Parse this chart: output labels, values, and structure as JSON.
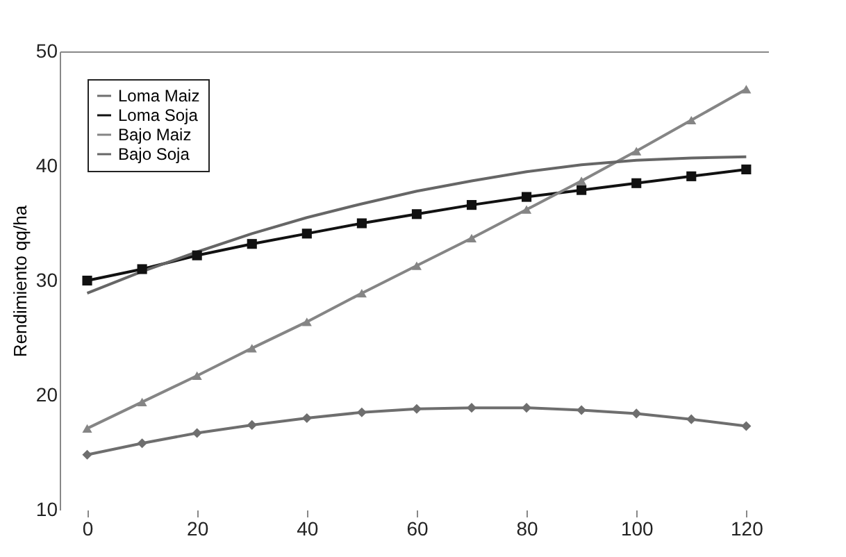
{
  "chart_data": {
    "type": "line",
    "ylabel": "Rendimiento qq/ha",
    "x": [
      0,
      10,
      20,
      30,
      40,
      50,
      60,
      70,
      80,
      90,
      100,
      110,
      120
    ],
    "xlim": [
      -5,
      124
    ],
    "xticks": [
      0,
      20,
      40,
      60,
      80,
      100,
      120
    ],
    "ylim": [
      10,
      50
    ],
    "yticks": [
      10,
      20,
      30,
      40,
      50
    ],
    "grid": false,
    "legend": "top left",
    "line_style": "solid",
    "series": [
      {
        "name": "Loma Maiz",
        "color": "#6e6e6e",
        "marker": "diamond",
        "values": [
          14.8,
          15.8,
          16.7,
          17.4,
          18.0,
          18.5,
          18.8,
          18.9,
          18.9,
          18.7,
          18.4,
          17.9,
          17.3
        ]
      },
      {
        "name": "Loma Soja",
        "color": "#111111",
        "marker": "square",
        "values": [
          30.0,
          31.0,
          32.2,
          33.2,
          34.1,
          35.0,
          35.8,
          36.6,
          37.3,
          37.9,
          38.5,
          39.1,
          39.7
        ]
      },
      {
        "name": "Bajo Maiz",
        "color": "#858585",
        "marker": "triangle",
        "values": [
          17.1,
          19.4,
          21.7,
          24.1,
          26.4,
          28.9,
          31.3,
          33.7,
          36.2,
          38.7,
          41.3,
          44.0,
          46.7
        ]
      },
      {
        "name": "Bajo Soja",
        "color": "#666666",
        "marker": "none",
        "values": [
          28.9,
          30.8,
          32.5,
          34.1,
          35.5,
          36.7,
          37.8,
          38.7,
          39.5,
          40.1,
          40.5,
          40.7,
          40.8
        ]
      }
    ]
  }
}
